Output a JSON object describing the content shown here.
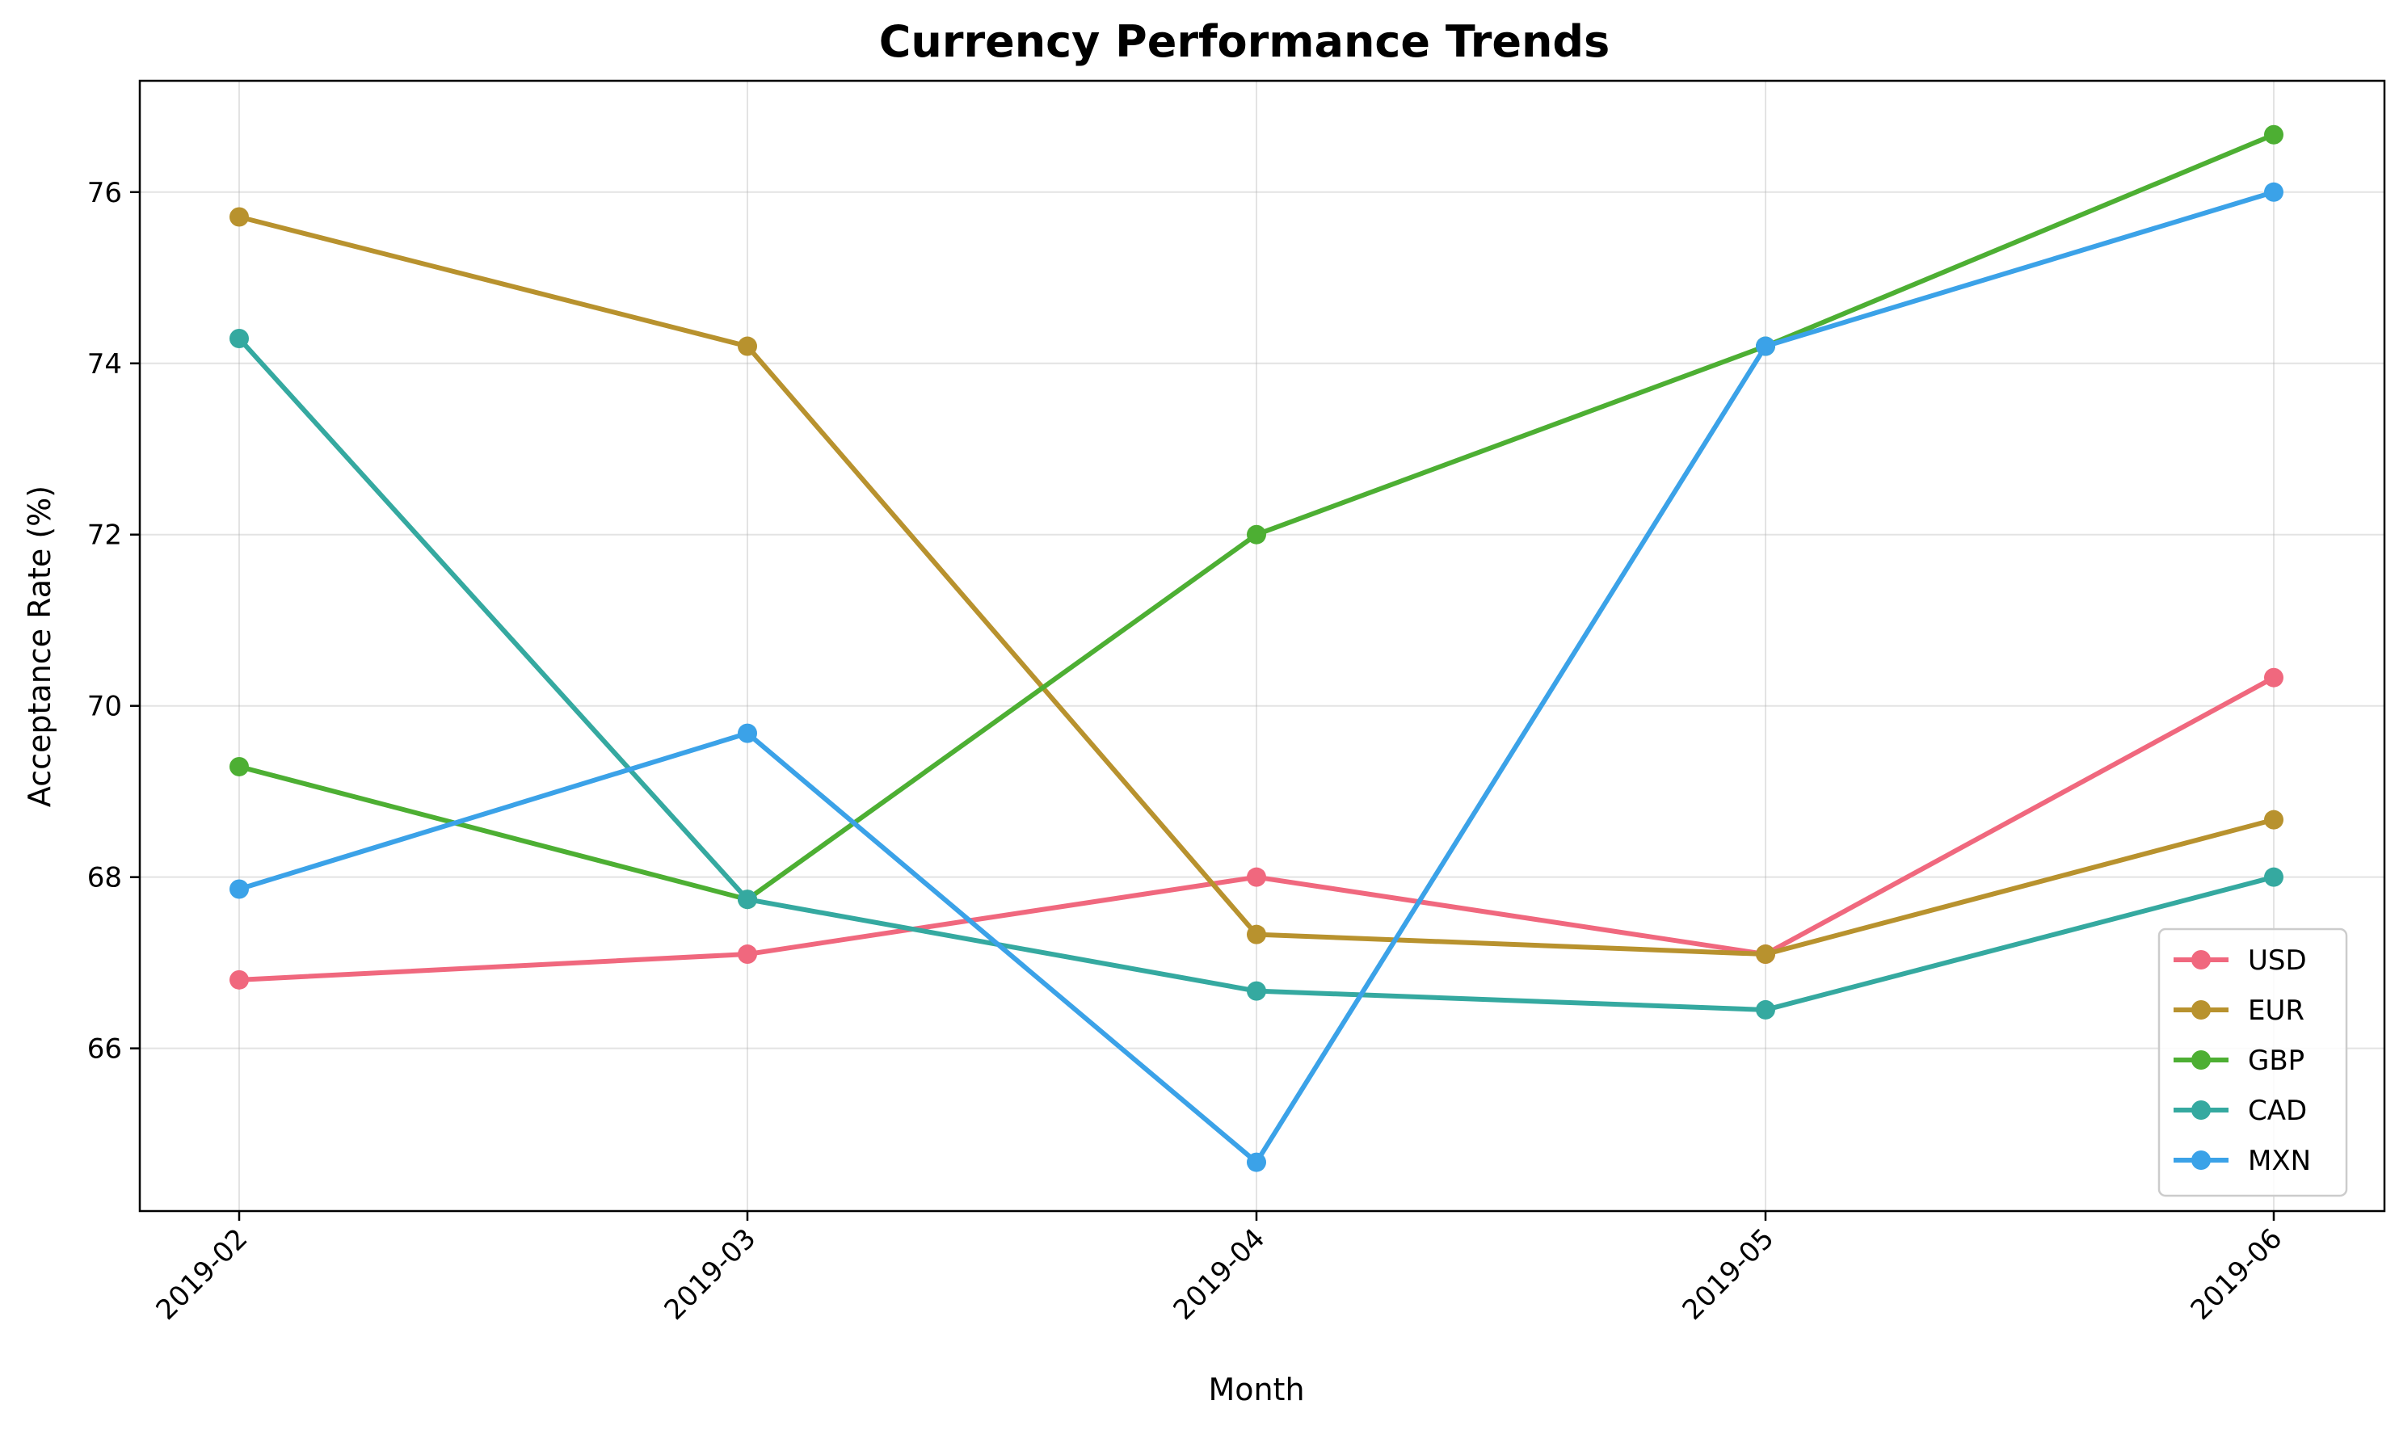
{
  "chart_data": {
    "type": "line",
    "title": "Currency Performance Trends",
    "xlabel": "Month",
    "ylabel": "Acceptance Rate (%)",
    "categories": [
      "2019-02",
      "2019-03",
      "2019-04",
      "2019-05",
      "2019-06"
    ],
    "ylim": [
      64.1,
      77.3
    ],
    "yticks": [
      66,
      68,
      70,
      72,
      74,
      76
    ],
    "grid": true,
    "legend_position": "lower-right",
    "series": [
      {
        "name": "USD",
        "color": "#f0687e",
        "values": [
          66.8,
          67.1,
          68.0,
          67.1,
          70.33
        ]
      },
      {
        "name": "EUR",
        "color": "#b8922e",
        "values": [
          75.71,
          74.2,
          67.33,
          67.1,
          68.67
        ]
      },
      {
        "name": "GBP",
        "color": "#4daf33",
        "values": [
          69.29,
          67.74,
          72.0,
          74.2,
          76.67
        ]
      },
      {
        "name": "CAD",
        "color": "#35a9a0",
        "values": [
          74.29,
          67.74,
          66.67,
          66.45,
          68.0
        ]
      },
      {
        "name": "MXN",
        "color": "#3ba2e8",
        "values": [
          67.86,
          69.68,
          64.67,
          74.2,
          76.0
        ]
      }
    ]
  }
}
